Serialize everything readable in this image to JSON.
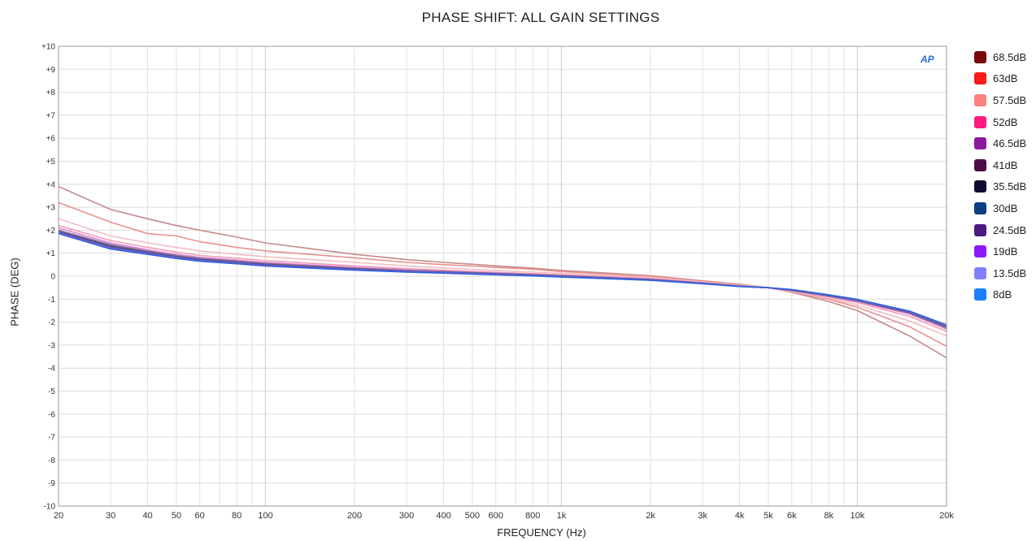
{
  "chart_data": {
    "type": "line",
    "title": "PHASE SHIFT: ALL GAIN SETTINGS",
    "xlabel": "FREQUENCY (Hz)",
    "ylabel": "PHASE (DEG)",
    "x_scale": "log",
    "xlim": [
      20,
      20000
    ],
    "ylim": [
      -10,
      10
    ],
    "grid": true,
    "logo": "AP",
    "legend_position": "right",
    "x_ticks": [
      {
        "value": 20,
        "label": "20"
      },
      {
        "value": 30,
        "label": "30"
      },
      {
        "value": 40,
        "label": "40"
      },
      {
        "value": 50,
        "label": "50"
      },
      {
        "value": 60,
        "label": "60"
      },
      {
        "value": 80,
        "label": "80"
      },
      {
        "value": 100,
        "label": "100"
      },
      {
        "value": 200,
        "label": "200"
      },
      {
        "value": 300,
        "label": "300"
      },
      {
        "value": 400,
        "label": "400"
      },
      {
        "value": 500,
        "label": "500"
      },
      {
        "value": 600,
        "label": "600"
      },
      {
        "value": 800,
        "label": "800"
      },
      {
        "value": 1000,
        "label": "1k"
      },
      {
        "value": 2000,
        "label": "2k"
      },
      {
        "value": 3000,
        "label": "3k"
      },
      {
        "value": 4000,
        "label": "4k"
      },
      {
        "value": 5000,
        "label": "5k"
      },
      {
        "value": 6000,
        "label": "6k"
      },
      {
        "value": 8000,
        "label": "8k"
      },
      {
        "value": 10000,
        "label": "10k"
      },
      {
        "value": 20000,
        "label": "20k"
      }
    ],
    "y_ticks": [
      {
        "value": 10,
        "label": "+10"
      },
      {
        "value": 9,
        "label": "+9"
      },
      {
        "value": 8,
        "label": "+8"
      },
      {
        "value": 7,
        "label": "+7"
      },
      {
        "value": 6,
        "label": "+6"
      },
      {
        "value": 5,
        "label": "+5"
      },
      {
        "value": 4,
        "label": "+4"
      },
      {
        "value": 3,
        "label": "+3"
      },
      {
        "value": 2,
        "label": "+2"
      },
      {
        "value": 1,
        "label": "+1"
      },
      {
        "value": 0,
        "label": "0"
      },
      {
        "value": -1,
        "label": "-1"
      },
      {
        "value": -2,
        "label": "-2"
      },
      {
        "value": -3,
        "label": "-3"
      },
      {
        "value": -4,
        "label": "-4"
      },
      {
        "value": -5,
        "label": "-5"
      },
      {
        "value": -6,
        "label": "-6"
      },
      {
        "value": -7,
        "label": "-7"
      },
      {
        "value": -8,
        "label": "-8"
      },
      {
        "value": -9,
        "label": "-9"
      },
      {
        "value": -10,
        "label": "-10"
      }
    ],
    "x": [
      20,
      30,
      40,
      50,
      60,
      80,
      100,
      200,
      300,
      400,
      500,
      600,
      800,
      1000,
      2000,
      3000,
      4000,
      5000,
      6000,
      8000,
      10000,
      15000,
      20000
    ],
    "series": [
      {
        "name": "68.5dB",
        "legend_color": "#7a0a0a",
        "line_color": "#c48a8a",
        "values": [
          3.9,
          2.9,
          2.5,
          2.2,
          2.0,
          1.7,
          1.45,
          0.95,
          0.72,
          0.6,
          0.52,
          0.45,
          0.35,
          0.25,
          0.02,
          -0.2,
          -0.35,
          -0.5,
          -0.7,
          -1.1,
          -1.5,
          -2.6,
          -3.55
        ]
      },
      {
        "name": "63dB",
        "legend_color": "#ff1a1a",
        "line_color": "#e8908e",
        "values": [
          3.2,
          2.35,
          1.85,
          1.75,
          1.5,
          1.25,
          1.1,
          0.8,
          0.6,
          0.5,
          0.44,
          0.38,
          0.3,
          0.2,
          0.0,
          -0.22,
          -0.38,
          -0.5,
          -0.68,
          -1.0,
          -1.35,
          -2.2,
          -3.05
        ]
      },
      {
        "name": "57.5dB",
        "legend_color": "#ff8080",
        "line_color": "#f4bcc0",
        "values": [
          2.5,
          1.75,
          1.45,
          1.25,
          1.1,
          0.95,
          0.85,
          0.6,
          0.45,
          0.36,
          0.3,
          0.25,
          0.18,
          0.12,
          -0.05,
          -0.25,
          -0.4,
          -0.5,
          -0.66,
          -0.95,
          -1.25,
          -1.95,
          -2.6
        ]
      },
      {
        "name": "52dB",
        "legend_color": "#ff1a80",
        "line_color": "#f59ab8",
        "values": [
          2.2,
          1.55,
          1.25,
          1.05,
          0.9,
          0.78,
          0.68,
          0.45,
          0.33,
          0.26,
          0.21,
          0.17,
          0.11,
          0.06,
          -0.1,
          -0.28,
          -0.42,
          -0.5,
          -0.64,
          -0.9,
          -1.15,
          -1.75,
          -2.4
        ]
      },
      {
        "name": "46.5dB",
        "legend_color": "#8c1a9c",
        "line_color": "#d48ad4",
        "values": [
          2.1,
          1.45,
          1.15,
          0.95,
          0.82,
          0.7,
          0.6,
          0.38,
          0.28,
          0.22,
          0.18,
          0.14,
          0.08,
          0.03,
          -0.12,
          -0.29,
          -0.43,
          -0.5,
          -0.63,
          -0.88,
          -1.1,
          -1.65,
          -2.3
        ]
      },
      {
        "name": "41dB",
        "legend_color": "#4d0d4d",
        "line_color": "#a070a8",
        "values": [
          2.0,
          1.38,
          1.1,
          0.9,
          0.78,
          0.66,
          0.56,
          0.35,
          0.25,
          0.2,
          0.16,
          0.12,
          0.07,
          0.02,
          -0.14,
          -0.3,
          -0.43,
          -0.5,
          -0.62,
          -0.86,
          -1.08,
          -1.6,
          -2.25
        ]
      },
      {
        "name": "35.5dB",
        "legend_color": "#0d0d33",
        "line_color": "#555577",
        "values": [
          1.95,
          1.32,
          1.05,
          0.86,
          0.74,
          0.62,
          0.52,
          0.32,
          0.23,
          0.18,
          0.14,
          0.11,
          0.06,
          0.01,
          -0.15,
          -0.3,
          -0.44,
          -0.5,
          -0.61,
          -0.85,
          -1.06,
          -1.58,
          -2.2
        ]
      },
      {
        "name": "30dB",
        "legend_color": "#0d4080",
        "line_color": "#3a5f96",
        "values": [
          1.92,
          1.28,
          1.02,
          0.84,
          0.72,
          0.6,
          0.5,
          0.3,
          0.22,
          0.17,
          0.13,
          0.1,
          0.05,
          0.0,
          -0.16,
          -0.31,
          -0.44,
          -0.5,
          -0.6,
          -0.84,
          -1.05,
          -1.56,
          -2.18
        ]
      },
      {
        "name": "24.5dB",
        "legend_color": "#4d1a80",
        "line_color": "#6a4a9a",
        "values": [
          1.9,
          1.25,
          1.0,
          0.82,
          0.7,
          0.58,
          0.48,
          0.29,
          0.21,
          0.16,
          0.12,
          0.09,
          0.04,
          -0.01,
          -0.16,
          -0.31,
          -0.44,
          -0.5,
          -0.6,
          -0.83,
          -1.04,
          -1.55,
          -2.16
        ]
      },
      {
        "name": "19dB",
        "legend_color": "#8c1aff",
        "line_color": "#8a5ae8",
        "values": [
          1.88,
          1.22,
          0.98,
          0.8,
          0.68,
          0.56,
          0.46,
          0.28,
          0.2,
          0.15,
          0.11,
          0.08,
          0.03,
          -0.02,
          -0.17,
          -0.32,
          -0.44,
          -0.5,
          -0.59,
          -0.82,
          -1.03,
          -1.54,
          -2.15
        ]
      },
      {
        "name": "13.5dB",
        "legend_color": "#8080ff",
        "line_color": "#7a7aee",
        "values": [
          1.86,
          1.2,
          0.96,
          0.78,
          0.66,
          0.55,
          0.45,
          0.27,
          0.19,
          0.14,
          0.1,
          0.07,
          0.02,
          -0.03,
          -0.17,
          -0.32,
          -0.45,
          -0.5,
          -0.59,
          -0.82,
          -1.02,
          -1.53,
          -2.14
        ]
      },
      {
        "name": "8dB",
        "legend_color": "#1a80ff",
        "line_color": "#2e5fd8",
        "values": [
          1.85,
          1.18,
          0.95,
          0.77,
          0.65,
          0.54,
          0.44,
          0.26,
          0.18,
          0.13,
          0.09,
          0.06,
          0.01,
          -0.04,
          -0.18,
          -0.33,
          -0.45,
          -0.5,
          -0.58,
          -0.81,
          -1.01,
          -1.52,
          -2.12
        ]
      }
    ]
  }
}
